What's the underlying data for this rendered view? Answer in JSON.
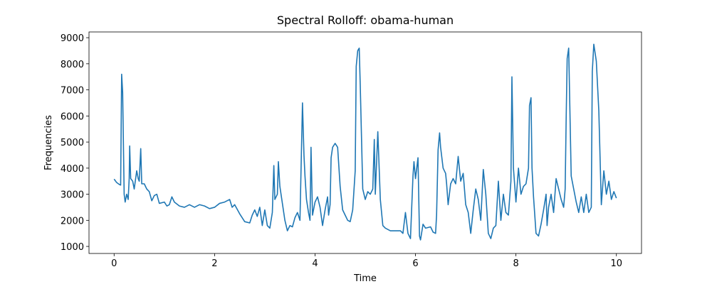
{
  "chart_data": {
    "type": "line",
    "title": "Spectral Rolloff: obama-human",
    "x_label": "Time",
    "y_label": "Frequencies",
    "x": [
      0,
      0.05,
      0.1,
      0.13,
      0.15,
      0.17,
      0.2,
      0.22,
      0.25,
      0.28,
      0.3,
      0.31,
      0.33,
      0.37,
      0.4,
      0.45,
      0.48,
      0.5,
      0.53,
      0.55,
      0.6,
      0.65,
      0.7,
      0.75,
      0.8,
      0.85,
      0.9,
      1.0,
      1.05,
      1.1,
      1.15,
      1.2,
      1.3,
      1.4,
      1.5,
      1.6,
      1.7,
      1.8,
      1.9,
      2.0,
      2.1,
      2.2,
      2.3,
      2.35,
      2.4,
      2.5,
      2.6,
      2.7,
      2.75,
      2.8,
      2.85,
      2.9,
      2.95,
      3.0,
      3.05,
      3.1,
      3.15,
      3.18,
      3.2,
      3.25,
      3.27,
      3.3,
      3.4,
      3.45,
      3.5,
      3.55,
      3.6,
      3.65,
      3.7,
      3.75,
      3.78,
      3.8,
      3.83,
      3.87,
      3.9,
      3.92,
      3.95,
      4.0,
      4.05,
      4.1,
      4.15,
      4.2,
      4.25,
      4.27,
      4.3,
      4.32,
      4.35,
      4.4,
      4.45,
      4.5,
      4.55,
      4.6,
      4.65,
      4.7,
      4.75,
      4.8,
      4.82,
      4.85,
      4.88,
      4.9,
      4.95,
      5.0,
      5.05,
      5.1,
      5.15,
      5.18,
      5.2,
      5.25,
      5.3,
      5.35,
      5.4,
      5.5,
      5.6,
      5.7,
      5.75,
      5.8,
      5.85,
      5.9,
      5.95,
      5.97,
      6.0,
      6.05,
      6.08,
      6.1,
      6.15,
      6.2,
      6.3,
      6.35,
      6.4,
      6.42,
      6.45,
      6.48,
      6.5,
      6.55,
      6.6,
      6.62,
      6.65,
      6.7,
      6.75,
      6.8,
      6.85,
      6.9,
      6.95,
      7.0,
      7.05,
      7.1,
      7.15,
      7.2,
      7.25,
      7.3,
      7.35,
      7.4,
      7.45,
      7.5,
      7.55,
      7.6,
      7.65,
      7.7,
      7.75,
      7.8,
      7.85,
      7.9,
      7.92,
      7.95,
      8.0,
      8.05,
      8.1,
      8.15,
      8.2,
      8.25,
      8.27,
      8.3,
      8.32,
      8.35,
      8.4,
      8.45,
      8.5,
      8.55,
      8.6,
      8.62,
      8.65,
      8.7,
      8.75,
      8.8,
      8.85,
      8.9,
      8.95,
      8.98,
      9.0,
      9.02,
      9.05,
      9.1,
      9.15,
      9.2,
      9.25,
      9.3,
      9.35,
      9.4,
      9.45,
      9.5,
      9.52,
      9.55,
      9.6,
      9.65,
      9.7,
      9.75,
      9.8,
      9.85,
      9.9,
      9.95,
      10.0
    ],
    "series": [
      {
        "name": "spectral rolloff",
        "color": "#1f77b4",
        "values": [
          3580,
          3450,
          3380,
          3350,
          7600,
          6900,
          3000,
          2700,
          3000,
          2800,
          3600,
          4850,
          3600,
          3500,
          3200,
          3900,
          3600,
          3500,
          4750,
          3400,
          3400,
          3200,
          3100,
          2750,
          2950,
          3000,
          2650,
          2700,
          2550,
          2600,
          2900,
          2700,
          2550,
          2500,
          2600,
          2500,
          2600,
          2550,
          2450,
          2500,
          2650,
          2700,
          2800,
          2500,
          2600,
          2250,
          1950,
          1900,
          2200,
          2400,
          2150,
          2500,
          1800,
          2400,
          1800,
          1700,
          2300,
          4100,
          2800,
          3000,
          4250,
          3300,
          2000,
          1600,
          1800,
          1750,
          2100,
          2300,
          2000,
          6500,
          4500,
          3700,
          2800,
          2300,
          2000,
          4800,
          2200,
          2700,
          2900,
          2500,
          1800,
          2400,
          2900,
          2200,
          2600,
          4400,
          4800,
          4950,
          4800,
          3300,
          2400,
          2200,
          2000,
          1950,
          2400,
          3900,
          7900,
          8500,
          8600,
          7200,
          3200,
          2800,
          3100,
          3000,
          3200,
          5100,
          3000,
          5400,
          2800,
          1800,
          1700,
          1600,
          1600,
          1600,
          1500,
          2300,
          1500,
          1300,
          3700,
          4250,
          3600,
          4400,
          1400,
          1250,
          1850,
          1700,
          1750,
          1550,
          1500,
          2200,
          4700,
          5350,
          4800,
          4000,
          3800,
          3400,
          2600,
          3400,
          3600,
          3400,
          4450,
          3500,
          3800,
          2600,
          2300,
          1500,
          2400,
          3200,
          2800,
          2000,
          3950,
          3000,
          1500,
          1300,
          1700,
          1800,
          3500,
          2000,
          3000,
          2300,
          2200,
          3500,
          7500,
          4000,
          2700,
          4000,
          3000,
          3300,
          3400,
          4000,
          6400,
          6700,
          4000,
          2900,
          1500,
          1400,
          1850,
          2400,
          3000,
          1800,
          2500,
          3000,
          2300,
          3600,
          3200,
          2800,
          2500,
          3200,
          5900,
          8200,
          8600,
          3700,
          3200,
          2700,
          2300,
          2900,
          2300,
          3000,
          2300,
          2500,
          7700,
          8750,
          8100,
          6200,
          2600,
          3900,
          3000,
          3500,
          2800,
          3100,
          2850
        ]
      }
    ],
    "xlim": [
      -0.5,
      10.5
    ],
    "ylim": [
      730,
      9220
    ],
    "xticks": [
      0,
      2,
      4,
      6,
      8,
      10
    ],
    "yticks": [
      1000,
      2000,
      3000,
      4000,
      5000,
      6000,
      7000,
      8000,
      9000
    ]
  }
}
